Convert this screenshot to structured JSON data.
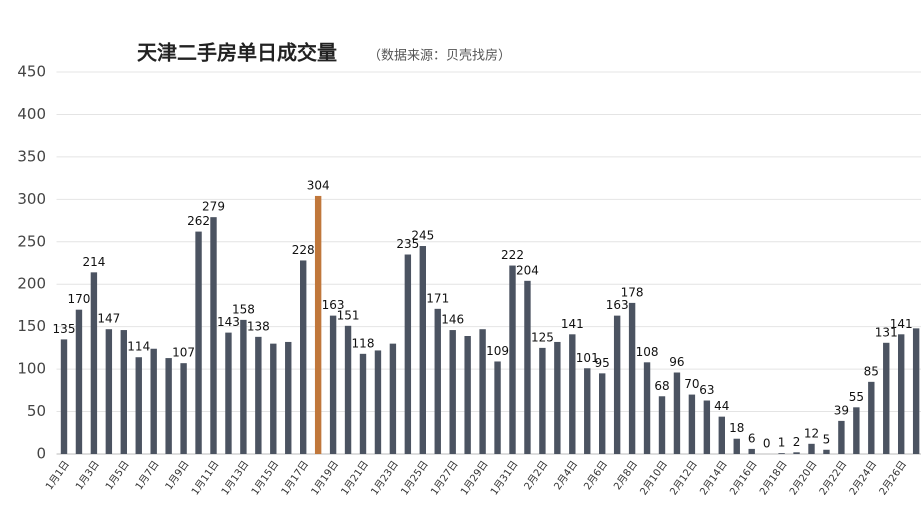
{
  "chart_data": {
    "type": "bar",
    "title": "天津二手房单日成交量",
    "subtitle": "（数据来源：贝壳找房）",
    "categories": [
      "1月1日",
      null,
      "1月3日",
      null,
      "1月5日",
      null,
      "1月7日",
      null,
      "1月9日",
      null,
      "1月11日",
      null,
      "1月13日",
      null,
      "1月15日",
      null,
      "1月17日",
      null,
      "1月19日",
      null,
      "1月21日",
      null,
      "1月23日",
      null,
      "1月25日",
      null,
      "1月27日",
      null,
      "1月29日",
      null,
      "1月31日",
      null,
      "2月2日",
      null,
      "2月4日",
      null,
      "2月6日",
      null,
      "2月8日",
      null,
      "2月10日",
      null,
      "2月12日",
      null,
      "2月14日",
      null,
      "2月16日",
      null,
      "2月18日",
      null,
      "2月20日",
      null,
      "2月22日",
      null,
      "2月24日",
      null,
      "2月26日",
      null
    ],
    "values": [
      135,
      170,
      214,
      147,
      146,
      114,
      124,
      113,
      107,
      262,
      279,
      143,
      158,
      138,
      130,
      132,
      228,
      304,
      163,
      151,
      118,
      122,
      130,
      235,
      245,
      171,
      146,
      139,
      147,
      109,
      222,
      204,
      125,
      132,
      141,
      101,
      95,
      163,
      178,
      108,
      68,
      96,
      70,
      63,
      44,
      18,
      6,
      0,
      1,
      2,
      12,
      5,
      39,
      55,
      85,
      131,
      141,
      148
    ],
    "value_labels": [
      "135",
      "170",
      "214",
      "147",
      null,
      "114",
      null,
      null,
      "107",
      "262",
      "279",
      "143",
      "158",
      "138",
      null,
      null,
      "228",
      "304",
      "163",
      "151",
      "118",
      null,
      null,
      "235",
      "245",
      "171",
      "146",
      null,
      null,
      "109",
      "222",
      "204",
      "125",
      null,
      "141",
      "101",
      "95",
      "163",
      "178",
      "108",
      "68",
      "96",
      "70",
      "63",
      "44",
      "18",
      "6",
      "0",
      "1",
      "2",
      "12",
      "5",
      "39",
      "55",
      "85",
      "131",
      "141",
      null
    ],
    "colors": [
      "#4b5361",
      "#4b5361",
      "#4b5361",
      "#4b5361",
      "#4b5361",
      "#4b5361",
      "#4b5361",
      "#4b5361",
      "#4b5361",
      "#4b5361",
      "#4b5361",
      "#4b5361",
      "#4b5361",
      "#4b5361",
      "#4b5361",
      "#4b5361",
      "#4b5361",
      "#c0773b",
      "#4b5361",
      "#4b5361",
      "#4b5361",
      "#4b5361",
      "#4b5361",
      "#4b5361",
      "#4b5361",
      "#4b5361",
      "#4b5361",
      "#4b5361",
      "#4b5361",
      "#4b5361",
      "#4b5361",
      "#4b5361",
      "#4b5361",
      "#4b5361",
      "#4b5361",
      "#4b5361",
      "#4b5361",
      "#4b5361",
      "#4b5361",
      "#4b5361",
      "#4b5361",
      "#4b5361",
      "#4b5361",
      "#4b5361",
      "#4b5361",
      "#4b5361",
      "#4b5361",
      "#4b5361",
      "#4b5361",
      "#4b5361",
      "#4b5361",
      "#4b5361",
      "#4b5361",
      "#4b5361",
      "#4b5361",
      "#4b5361",
      "#4b5361",
      "#4b5361"
    ],
    "ylim": [
      0,
      450
    ],
    "yticks": [
      0,
      50,
      100,
      150,
      200,
      250,
      300,
      350,
      400,
      450
    ],
    "grid": true
  }
}
